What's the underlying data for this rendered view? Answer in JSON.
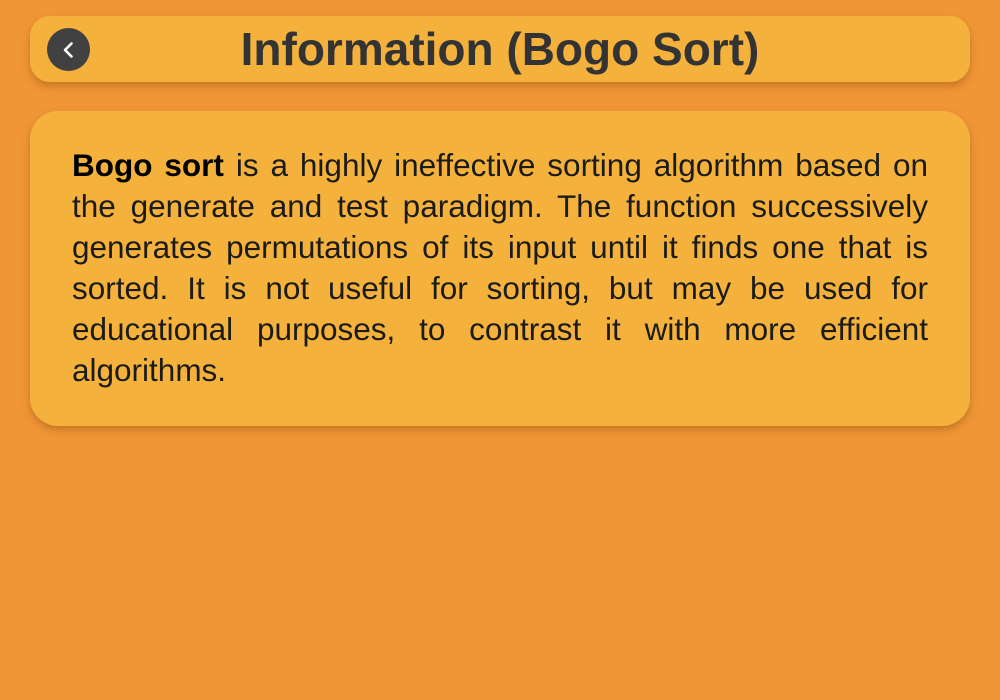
{
  "header": {
    "title": "Information (Bogo Sort)",
    "back_icon": "chevron-left-icon"
  },
  "info": {
    "term": "Bogo sort",
    "description": " is a highly ineffective sorting algorithm based on the generate and test paradigm. The function successively generates permutations of its input until it finds one that is sorted. It is not useful for sorting, but may be used for educational purposes, to contrast it with more efficient algorithms."
  },
  "colors": {
    "background": "#f09636",
    "panel": "#f4b23c",
    "back_button": "#414141",
    "title_text": "#333333"
  }
}
